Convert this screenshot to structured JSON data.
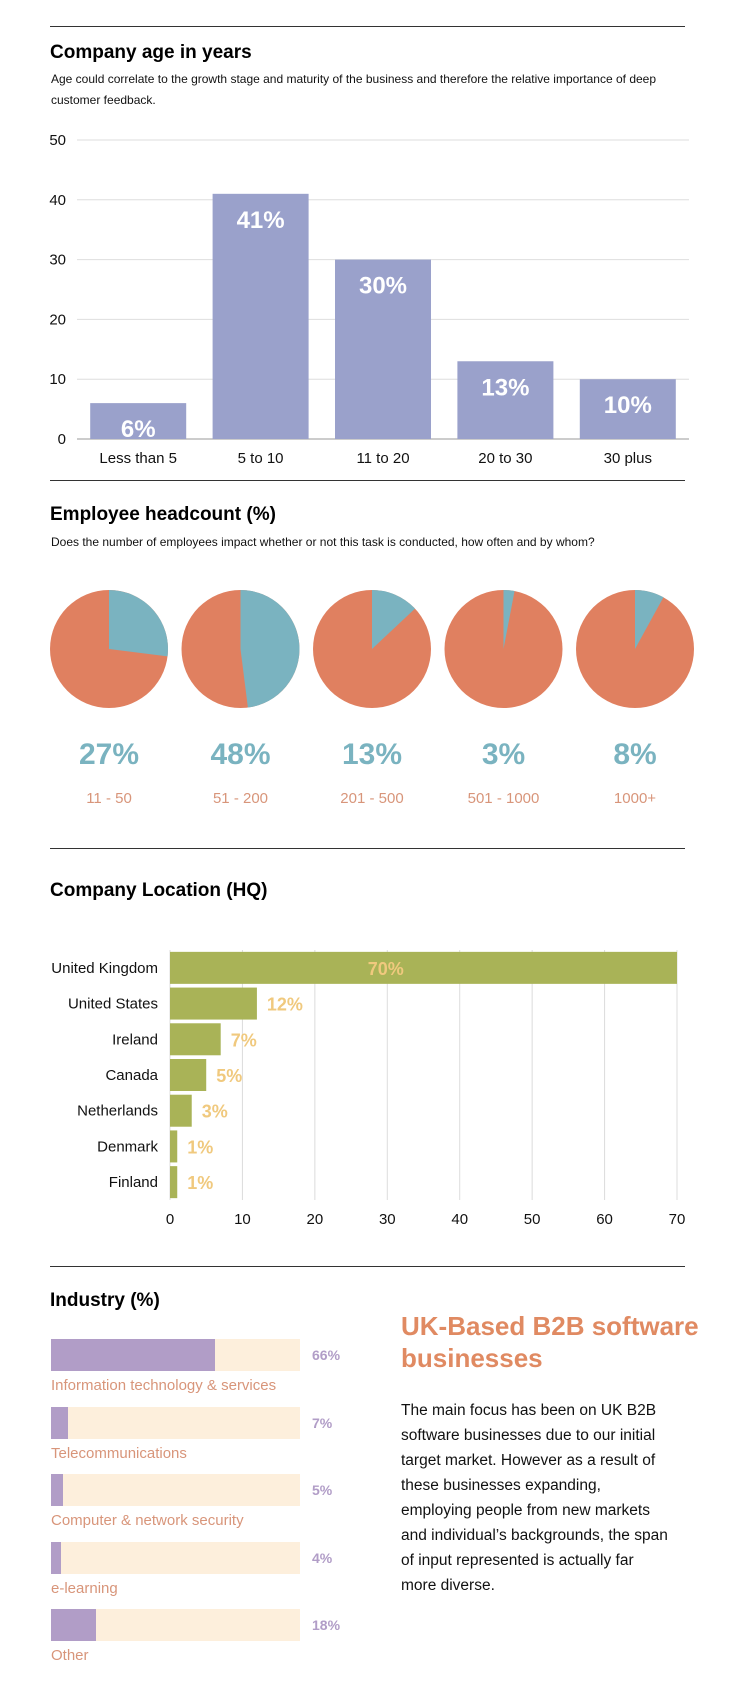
{
  "sections": {
    "age": {
      "title": "Company age in years",
      "description": "Age could correlate to the growth stage and maturity of the business and therefore the relative importance of deep customer feedback."
    },
    "headcount": {
      "title": "Employee headcount (%)",
      "description": "Does the number of employees impact whether or not this task is conducted, how often and by whom?"
    },
    "location": {
      "title": "Company Location (HQ)"
    },
    "industry": {
      "title": "Industry (%)"
    }
  },
  "sidebar": {
    "title": "UK-Based B2B software businesses",
    "body": "The main focus has been on UK B2B software businesses due to our initial target market. However as a result of these businesses expanding, employing people from new markets and individual’s backgrounds, the span of input represented is actually far more diverse."
  },
  "colors": {
    "age_bar": "#9aa1cb",
    "pie_main": "#e08060",
    "pie_slice": "#7ab3c0",
    "location_bar": "#a9b357",
    "location_label": "#f0c97e",
    "industry_fill": "#b19dc7",
    "industry_track": "#fdefdc"
  },
  "chart_data": [
    {
      "type": "bar",
      "categories": [
        "Less than 5",
        "5 to 10",
        "11 to 20",
        "20 to 30",
        "30 plus"
      ],
      "values": [
        6,
        41,
        30,
        13,
        10
      ],
      "data_labels": [
        "6%",
        "41%",
        "30%",
        "13%",
        "10%"
      ],
      "yticks": [
        "0",
        "10",
        "20",
        "30",
        "40",
        "50"
      ],
      "ylim": [
        0,
        50
      ],
      "grid": true
    },
    {
      "type": "pie",
      "pies": [
        {
          "category": "11 - 50",
          "value": 27,
          "label": "27%"
        },
        {
          "category": "51 - 200",
          "value": 48,
          "label": "48%"
        },
        {
          "category": "201 - 500",
          "value": 13,
          "label": "13%"
        },
        {
          "category": "501 - 1000",
          "value": 3,
          "label": "3%"
        },
        {
          "category": "1000+",
          "value": 8,
          "label": "8%"
        }
      ]
    },
    {
      "type": "bar",
      "orientation": "horizontal",
      "categories": [
        "United Kingdom",
        "United States",
        "Ireland",
        "Canada",
        "Netherlands",
        "Denmark",
        "Finland"
      ],
      "values": [
        70,
        12,
        7,
        5,
        3,
        1,
        1
      ],
      "data_labels": [
        "70%",
        "12%",
        "7%",
        "5%",
        "3%",
        "1%",
        "1%"
      ],
      "xticks": [
        "0",
        "10",
        "20",
        "30",
        "40",
        "50",
        "60",
        "70"
      ],
      "xlim": [
        0,
        70
      ],
      "grid": true
    },
    {
      "type": "bar",
      "orientation": "horizontal",
      "categories": [
        "Information technology & services",
        "Telecommunications",
        "Computer & network security",
        "e-learning",
        "Other"
      ],
      "values": [
        66,
        7,
        5,
        4,
        18
      ],
      "data_labels": [
        "66%",
        "7%",
        "5%",
        "4%",
        "18%"
      ]
    }
  ]
}
